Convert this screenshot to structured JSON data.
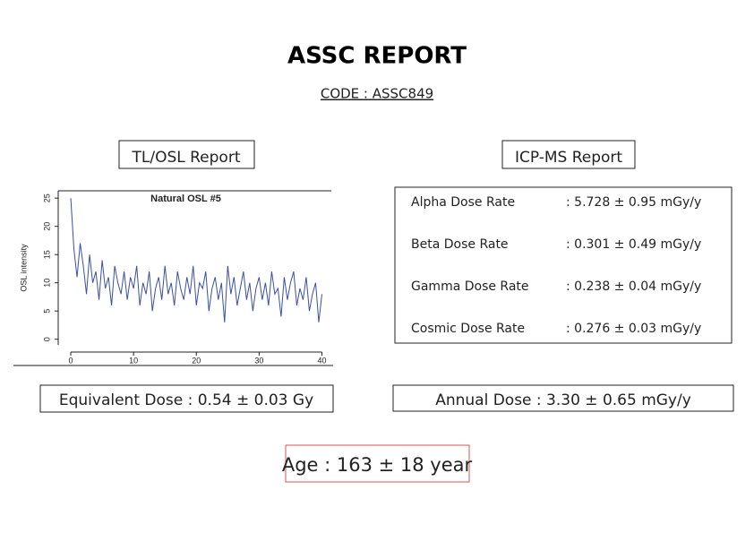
{
  "header": {
    "title": "ASSC REPORT",
    "code": "CODE : ASSC849"
  },
  "tl_osl": {
    "heading": "TL/OSL Report",
    "equivalent_dose": "Equivalent Dose : 0.54 ± 0.03 Gy"
  },
  "icp_ms": {
    "heading": "ICP-MS Report",
    "rows": [
      [
        "Alpha Dose Rate",
        ": 5.728 ± 0.95 mGy/y"
      ],
      [
        "Beta Dose Rate",
        ": 0.301 ± 0.49 mGy/y"
      ],
      [
        "Gamma Dose Rate",
        ": 0.238 ± 0.04 mGy/y"
      ],
      [
        "Cosmic Dose Rate",
        ": 0.276 ± 0.03 mGy/y"
      ]
    ],
    "annual_dose": "Annual Dose : 3.30 ± 0.65 mGy/y"
  },
  "age": "Age : 163 ± 18 year",
  "chart_data": {
    "type": "line",
    "title": "Natural OSL #5",
    "ylabel": "OSL intensity",
    "x": [
      0,
      0.5,
      1,
      1.5,
      2,
      2.5,
      3,
      3.5,
      4,
      4.5,
      5,
      5.5,
      6,
      6.5,
      7,
      7.5,
      8,
      8.5,
      9,
      9.5,
      10,
      10.5,
      11,
      11.5,
      12,
      12.5,
      13,
      13.5,
      14,
      14.5,
      15,
      15.5,
      16,
      16.5,
      17,
      17.5,
      18,
      18.5,
      19,
      19.5,
      20,
      20.5,
      21,
      21.5,
      22,
      22.5,
      23,
      23.5,
      24,
      24.5,
      25,
      25.5,
      26,
      26.5,
      27,
      27.5,
      28,
      28.5,
      29,
      29.5,
      30,
      30.5,
      31,
      31.5,
      32,
      32.5,
      33,
      33.5,
      34,
      34.5,
      35,
      35.5,
      36,
      36.5,
      37,
      37.5,
      38,
      38.5,
      39,
      39.5,
      40
    ],
    "series": [
      {
        "name": "Natural OSL #5",
        "color": "#3a4fa8",
        "values": [
          25,
          16,
          11,
          17,
          13,
          8,
          15,
          10,
          12,
          7,
          14,
          9,
          11,
          6,
          13,
          10,
          8,
          12,
          7,
          11,
          9,
          13,
          6,
          10,
          8,
          12,
          5,
          9,
          11,
          7,
          13,
          8,
          10,
          6,
          12,
          9,
          7,
          11,
          8,
          13,
          6,
          10,
          9,
          12,
          5,
          9,
          11,
          7,
          10,
          3,
          13,
          8,
          11,
          6,
          9,
          12,
          7,
          10,
          5,
          9,
          11,
          7,
          10,
          6,
          12,
          8,
          9,
          4,
          11,
          7,
          10,
          12,
          6,
          9,
          7,
          11,
          5,
          8,
          10,
          3,
          8
        ]
      }
    ],
    "xlim": [
      -2,
      41.5
    ],
    "ylim": [
      -1,
      26.3
    ],
    "xticks": [
      0,
      10,
      20,
      30,
      40
    ],
    "yticks": [
      0,
      5,
      10,
      15,
      20,
      25
    ]
  }
}
